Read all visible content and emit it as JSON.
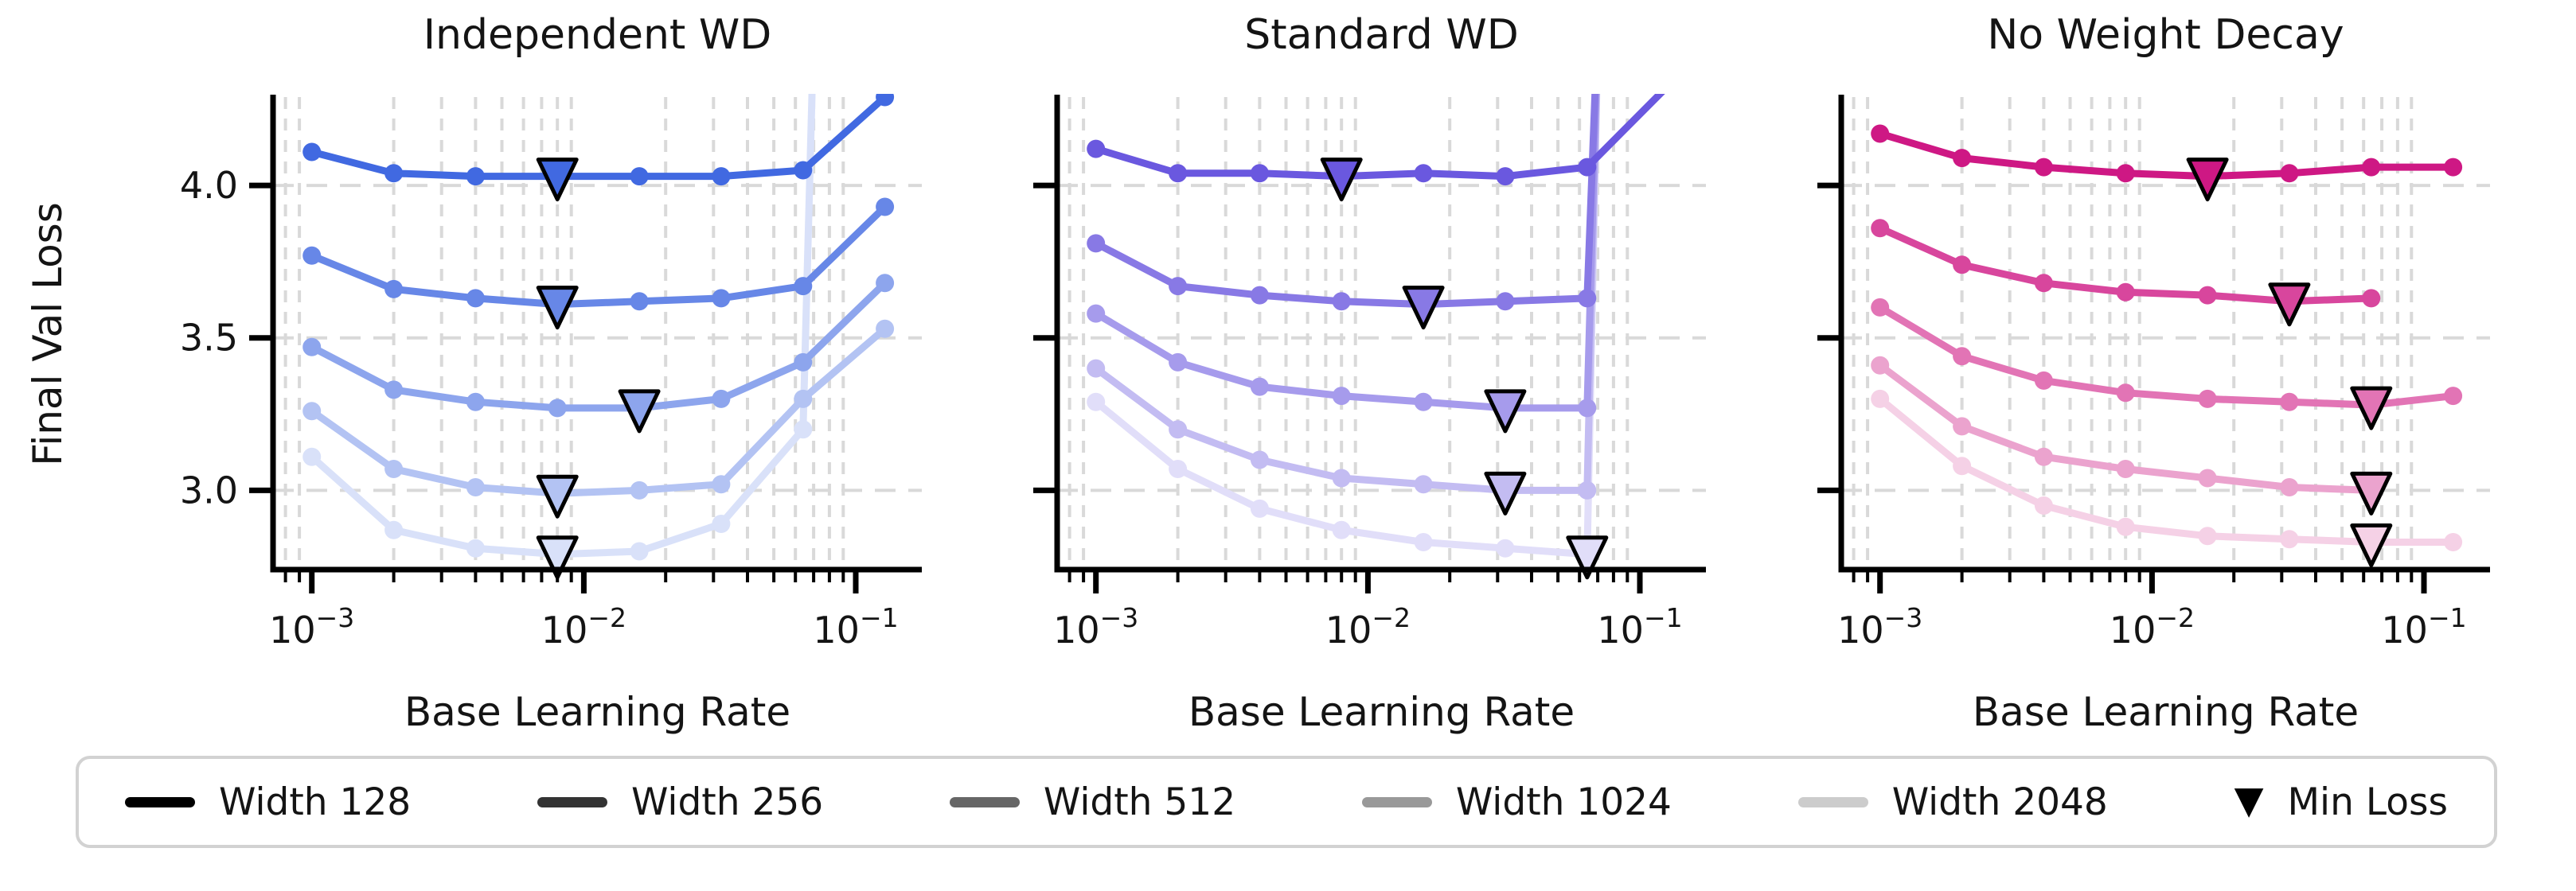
{
  "figure": {
    "ylabel": "Final Val Loss",
    "xlabel": "Base Learning Rate"
  },
  "axes": {
    "x_scale": "log",
    "xlim": [
      0.00072,
      0.175
    ],
    "ylim": [
      2.74,
      4.29
    ],
    "x_major_ticks": [
      {
        "value": 0.001,
        "base": "10",
        "exp": "−3"
      },
      {
        "value": 0.01,
        "base": "10",
        "exp": "−2"
      },
      {
        "value": 0.1,
        "base": "10",
        "exp": "−1"
      }
    ],
    "y_major_ticks": [
      {
        "value": 3.0,
        "label": "3.0"
      },
      {
        "value": 3.5,
        "label": "3.5"
      },
      {
        "value": 4.0,
        "label": "4.0"
      }
    ],
    "grid_color": "#d9d9d9",
    "grid_on": true,
    "spine_color": "#000000"
  },
  "legend": {
    "items": [
      {
        "label": "Width 128",
        "color": "#000000",
        "marker": "line"
      },
      {
        "label": "Width 256",
        "color": "#333333",
        "marker": "line"
      },
      {
        "label": "Width 512",
        "color": "#666666",
        "marker": "line"
      },
      {
        "label": "Width 1024",
        "color": "#999999",
        "marker": "line"
      },
      {
        "label": "Width 2048",
        "color": "#cccccc",
        "marker": "line"
      },
      {
        "label": "Min Loss",
        "color": "#000000",
        "marker": "triangle-down"
      }
    ]
  },
  "chart_data": {
    "type": "line",
    "xlabel": "Base Learning Rate",
    "ylabel": "Final Val Loss",
    "x_units": "learning rate (log scale)",
    "legend_position": "bottom",
    "panels": [
      {
        "title": "Independent WD",
        "color_family": "blue",
        "series": [
          {
            "name": "Width 128",
            "color": "#4169E1",
            "x": [
              0.001,
              0.002,
              0.004,
              0.008,
              0.016,
              0.032,
              0.064,
              0.128
            ],
            "y": [
              4.11,
              4.04,
              4.03,
              4.03,
              4.03,
              4.03,
              4.05,
              4.29
            ],
            "min_loss": {
              "x": 0.008,
              "y": 4.03
            }
          },
          {
            "name": "Width 256",
            "color": "#6787E7",
            "x": [
              0.001,
              0.002,
              0.004,
              0.008,
              0.016,
              0.032,
              0.064,
              0.128
            ],
            "y": [
              3.77,
              3.66,
              3.63,
              3.61,
              3.62,
              3.63,
              3.67,
              3.93
            ],
            "min_loss": {
              "x": 0.008,
              "y": 3.61
            }
          },
          {
            "name": "Width 512",
            "color": "#8DA5ED",
            "x": [
              0.001,
              0.002,
              0.004,
              0.008,
              0.016,
              0.032,
              0.064,
              0.128
            ],
            "y": [
              3.47,
              3.33,
              3.29,
              3.27,
              3.27,
              3.3,
              3.42,
              3.68
            ],
            "min_loss": {
              "x": 0.016,
              "y": 3.27
            }
          },
          {
            "name": "Width 1024",
            "color": "#B3C3F3",
            "x": [
              0.001,
              0.002,
              0.004,
              0.008,
              0.016,
              0.032,
              0.064,
              0.128
            ],
            "y": [
              3.26,
              3.07,
              3.01,
              2.99,
              3.0,
              3.02,
              3.3,
              3.53
            ],
            "min_loss": {
              "x": 0.008,
              "y": 2.99
            }
          },
          {
            "name": "Width 2048",
            "color": "#D9E1F9",
            "x": [
              0.001,
              0.002,
              0.004,
              0.008,
              0.016,
              0.032,
              0.064,
              0.0705
            ],
            "y": [
              3.11,
              2.87,
              2.81,
              2.79,
              2.8,
              2.89,
              3.2,
              4.6
            ],
            "diverges": true,
            "min_loss": {
              "x": 0.008,
              "y": 2.79
            }
          }
        ]
      },
      {
        "title": "Standard WD",
        "color_family": "purple",
        "series": [
          {
            "name": "Width 128",
            "color": "#6A58DF",
            "x": [
              0.001,
              0.002,
              0.004,
              0.008,
              0.016,
              0.032,
              0.064,
              0.128
            ],
            "y": [
              4.12,
              4.04,
              4.04,
              4.03,
              4.04,
              4.03,
              4.06,
              4.33
            ],
            "min_loss": {
              "x": 0.008,
              "y": 4.03
            }
          },
          {
            "name": "Width 256",
            "color": "#8879E5",
            "x": [
              0.001,
              0.002,
              0.004,
              0.008,
              0.016,
              0.032,
              0.064,
              0.0705
            ],
            "y": [
              3.81,
              3.67,
              3.64,
              3.62,
              3.61,
              3.62,
              3.63,
              4.6
            ],
            "diverges": true,
            "min_loss": {
              "x": 0.016,
              "y": 3.61
            }
          },
          {
            "name": "Width 512",
            "color": "#A69BEC",
            "x": [
              0.001,
              0.002,
              0.004,
              0.008,
              0.016,
              0.032,
              0.064,
              0.0705
            ],
            "y": [
              3.58,
              3.42,
              3.34,
              3.31,
              3.29,
              3.27,
              3.27,
              4.6
            ],
            "diverges": true,
            "min_loss": {
              "x": 0.032,
              "y": 3.27
            }
          },
          {
            "name": "Width 1024",
            "color": "#C3BCF2",
            "x": [
              0.001,
              0.002,
              0.004,
              0.008,
              0.016,
              0.032,
              0.064,
              0.0705
            ],
            "y": [
              3.4,
              3.2,
              3.1,
              3.04,
              3.02,
              3.0,
              3.0,
              4.6
            ],
            "diverges": true,
            "min_loss": {
              "x": 0.032,
              "y": 3.0
            }
          },
          {
            "name": "Width 2048",
            "color": "#E1DEF9",
            "x": [
              0.001,
              0.002,
              0.004,
              0.008,
              0.016,
              0.032,
              0.064,
              0.0705
            ],
            "y": [
              3.29,
              3.07,
              2.94,
              2.87,
              2.83,
              2.81,
              2.79,
              4.6
            ],
            "diverges": true,
            "min_loss": {
              "x": 0.064,
              "y": 2.79
            }
          }
        ]
      },
      {
        "title": "No Weight Decay",
        "color_family": "pink",
        "series": [
          {
            "name": "Width 128",
            "color": "#CE1884",
            "x": [
              0.001,
              0.002,
              0.004,
              0.008,
              0.016,
              0.032,
              0.064,
              0.128
            ],
            "y": [
              4.17,
              4.09,
              4.06,
              4.04,
              4.03,
              4.04,
              4.06,
              4.06
            ],
            "min_loss": {
              "x": 0.016,
              "y": 4.03
            }
          },
          {
            "name": "Width 256",
            "color": "#D8469D",
            "x": [
              0.001,
              0.002,
              0.004,
              0.008,
              0.016,
              0.032,
              0.064
            ],
            "y": [
              3.86,
              3.74,
              3.68,
              3.65,
              3.64,
              3.62,
              3.63
            ],
            "min_loss": {
              "x": 0.032,
              "y": 3.62
            }
          },
          {
            "name": "Width 512",
            "color": "#E274B5",
            "x": [
              0.001,
              0.002,
              0.004,
              0.008,
              0.016,
              0.032,
              0.064,
              0.128
            ],
            "y": [
              3.6,
              3.44,
              3.36,
              3.32,
              3.3,
              3.29,
              3.28,
              3.31
            ],
            "min_loss": {
              "x": 0.064,
              "y": 3.28
            }
          },
          {
            "name": "Width 1024",
            "color": "#EBA3CE",
            "x": [
              0.001,
              0.002,
              0.004,
              0.008,
              0.016,
              0.032,
              0.064
            ],
            "y": [
              3.41,
              3.21,
              3.11,
              3.07,
              3.04,
              3.01,
              3.0
            ],
            "min_loss": {
              "x": 0.064,
              "y": 3.0
            }
          },
          {
            "name": "Width 2048",
            "color": "#F5D1E6",
            "x": [
              0.001,
              0.002,
              0.004,
              0.008,
              0.016,
              0.032,
              0.064,
              0.128
            ],
            "y": [
              3.3,
              3.08,
              2.95,
              2.88,
              2.85,
              2.84,
              2.83,
              2.83
            ],
            "min_loss": {
              "x": 0.064,
              "y": 2.83
            }
          }
        ]
      }
    ]
  }
}
